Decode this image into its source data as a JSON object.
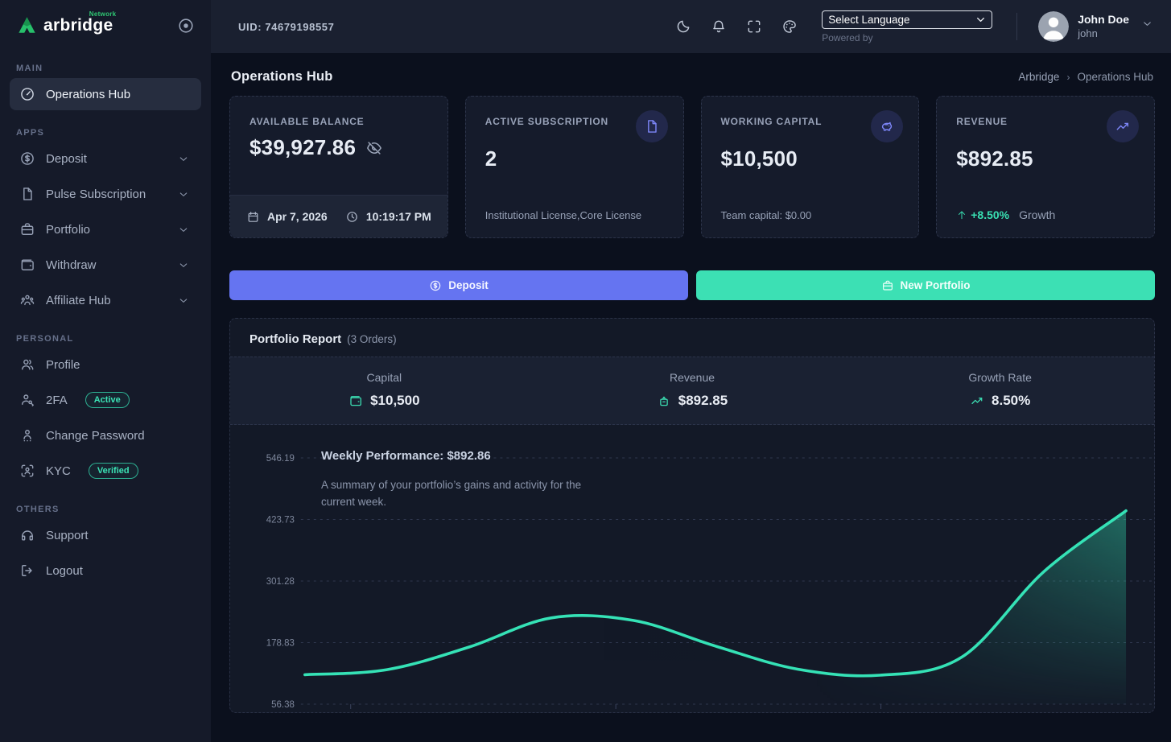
{
  "brand": {
    "name": "arbridge",
    "tag": "Network"
  },
  "header": {
    "uid": "UID: 74679198557",
    "language_select": "Select Language",
    "powered_by": "Powered by",
    "user": {
      "name": "John Doe",
      "handle": "john"
    }
  },
  "sidebar": {
    "sections": [
      {
        "label": "MAIN",
        "items": [
          {
            "label": "Operations Hub",
            "icon": "gauge-icon",
            "active": true
          }
        ]
      },
      {
        "label": "APPS",
        "items": [
          {
            "label": "Deposit",
            "icon": "coin-dollar-icon",
            "expandable": true
          },
          {
            "label": "Pulse Subscription",
            "icon": "file-icon",
            "expandable": true
          },
          {
            "label": "Portfolio",
            "icon": "briefcase-icon",
            "expandable": true
          },
          {
            "label": "Withdraw",
            "icon": "wallet-icon",
            "expandable": true
          },
          {
            "label": "Affiliate Hub",
            "icon": "users-icon",
            "expandable": true
          }
        ]
      },
      {
        "label": "PERSONAL",
        "items": [
          {
            "label": "Profile",
            "icon": "user-group-icon"
          },
          {
            "label": "2FA",
            "icon": "user-key-icon",
            "badge": "Active"
          },
          {
            "label": "Change Password",
            "icon": "user-password-icon"
          },
          {
            "label": "KYC",
            "icon": "user-scan-icon",
            "badge": "Verified"
          }
        ]
      },
      {
        "label": "OTHERS",
        "items": [
          {
            "label": "Support",
            "icon": "headset-icon"
          },
          {
            "label": "Logout",
            "icon": "logout-icon"
          }
        ]
      }
    ]
  },
  "page": {
    "title": "Operations Hub",
    "breadcrumb_root": "Arbridge",
    "breadcrumb_sep": "›",
    "breadcrumb_current": "Operations Hub"
  },
  "cards": [
    {
      "title": "AVAILABLE BALANCE",
      "value": "$39,927.86",
      "date": "Apr 7, 2026",
      "time": "10:19:17 PM",
      "icon": "eye-off-icon"
    },
    {
      "title": "ACTIVE SUBSCRIPTION",
      "value": "2",
      "subtitle": "Institutional License,Core License",
      "icon": "file-icon"
    },
    {
      "title": "WORKING CAPITAL",
      "value": "$10,500",
      "subtitle": "Team capital: $0.00",
      "icon": "piggy-bank-icon"
    },
    {
      "title": "REVENUE",
      "value": "$892.85",
      "change": "+8.50%",
      "change_label": "Growth",
      "icon": "trending-up-icon"
    }
  ],
  "actions": {
    "deposit": "Deposit",
    "new_portfolio": "New Portfolio"
  },
  "report": {
    "title": "Portfolio Report",
    "orders_note": "(3 Orders)",
    "stats": [
      {
        "label": "Capital",
        "value": "$10,500",
        "icon": "wallet-icon"
      },
      {
        "label": "Revenue",
        "value": "$892.85",
        "icon": "money-pot-icon"
      },
      {
        "label": "Growth Rate",
        "value": "8.50%",
        "icon": "trend-up-icon"
      }
    ]
  },
  "chart_data": {
    "type": "area",
    "title": "Weekly Performance: $892.86",
    "subtitle": "A summary of your portfolio’s gains and activity for the current week.",
    "y_ticks": [
      546.19,
      423.73,
      301.28,
      178.83,
      56.38
    ],
    "y_min": 56.38,
    "y_max": 546.19,
    "x_labels_visible": false,
    "values": [
      115,
      125,
      170,
      228,
      223,
      172,
      126,
      114,
      150,
      320,
      441
    ],
    "line_color": "#35e2b6",
    "grid": "horizontal-dashed",
    "fill": "gradient-right-teal"
  },
  "colors": {
    "accent_purple": "#6574f1",
    "accent_teal": "#3ce0b4",
    "badge_teal": "#3ce3b6",
    "sidebar_bg": "#151a29",
    "header_bg": "#1a2030",
    "page_bg": "#0b101d"
  }
}
